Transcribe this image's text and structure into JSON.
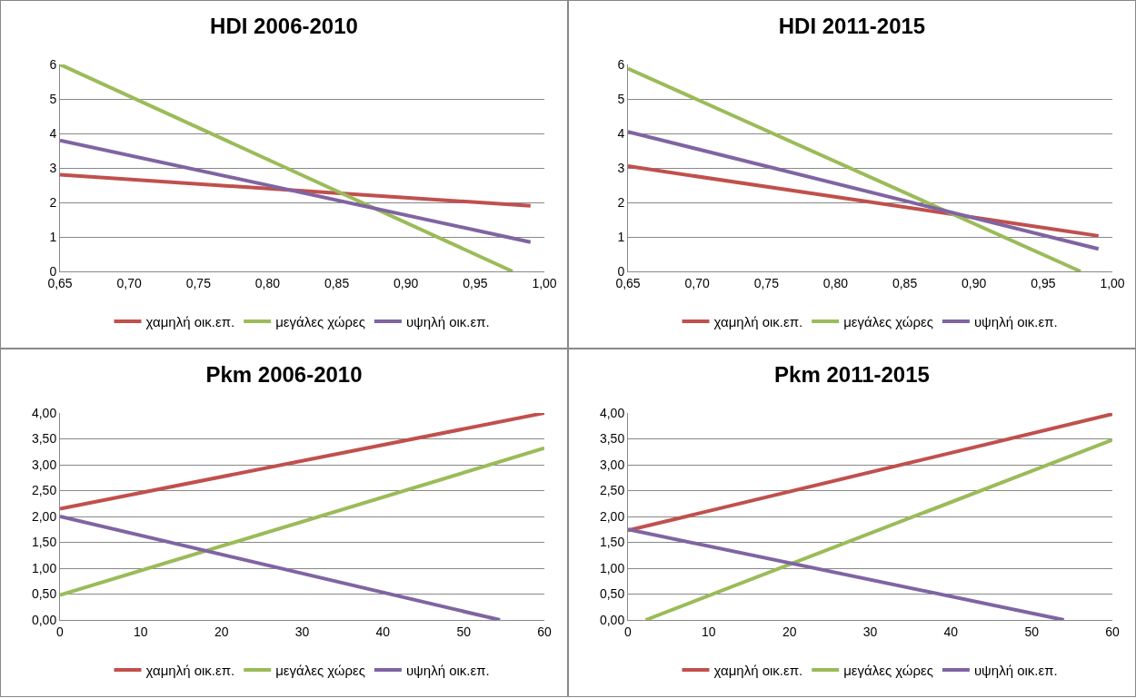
{
  "chart_data": [
    {
      "type": "line",
      "title": "HDI 2006-2010",
      "xlim": [
        0.65,
        1.0
      ],
      "xticks": [
        {
          "value": 0.65,
          "label": "0,65"
        },
        {
          "value": 0.7,
          "label": "0,70"
        },
        {
          "value": 0.75,
          "label": "0,75"
        },
        {
          "value": 0.8,
          "label": "0,80"
        },
        {
          "value": 0.85,
          "label": "0,85"
        },
        {
          "value": 0.9,
          "label": "0,90"
        },
        {
          "value": 0.95,
          "label": "0,95"
        },
        {
          "value": 1.0,
          "label": "1,00"
        }
      ],
      "ylim": [
        0,
        6
      ],
      "yticks": [
        0,
        1,
        2,
        3,
        4,
        5,
        6
      ],
      "grid": "y",
      "legend": "bottom",
      "series": [
        {
          "name": "χαμηλή οικ.επ.",
          "color": "#c0504d",
          "x": [
            0.65,
            0.99
          ],
          "values": [
            2.8,
            1.9
          ]
        },
        {
          "name": "μεγάλες χώρες",
          "color": "#9bbb59",
          "x": [
            0.65,
            0.977
          ],
          "values": [
            6,
            0
          ]
        },
        {
          "name": "υψηλή οικ.επ.",
          "color": "#8064a2",
          "x": [
            0.65,
            0.99
          ],
          "values": [
            3.8,
            0.85
          ]
        }
      ]
    },
    {
      "type": "line",
      "title": "HDI 2011-2015",
      "xlim": [
        0.65,
        1.0
      ],
      "xticks": [
        {
          "value": 0.65,
          "label": "0,65"
        },
        {
          "value": 0.7,
          "label": "0,70"
        },
        {
          "value": 0.75,
          "label": "0,75"
        },
        {
          "value": 0.8,
          "label": "0,80"
        },
        {
          "value": 0.85,
          "label": "0,85"
        },
        {
          "value": 0.9,
          "label": "0,90"
        },
        {
          "value": 0.95,
          "label": "0,95"
        },
        {
          "value": 1.0,
          "label": "1,00"
        }
      ],
      "ylim": [
        0,
        6
      ],
      "yticks": [
        0,
        1,
        2,
        3,
        4,
        5,
        6
      ],
      "grid": "y",
      "legend": "bottom",
      "series": [
        {
          "name": "χαμηλή οικ.επ.",
          "color": "#c0504d",
          "x": [
            0.65,
            0.99
          ],
          "values": [
            3.05,
            1.03
          ]
        },
        {
          "name": "μεγάλες χώρες",
          "color": "#9bbb59",
          "x": [
            0.65,
            0.977
          ],
          "values": [
            5.88,
            0
          ]
        },
        {
          "name": "υψηλή οικ.επ.",
          "color": "#8064a2",
          "x": [
            0.65,
            0.99
          ],
          "values": [
            4.05,
            0.65
          ]
        }
      ]
    },
    {
      "type": "line",
      "title": "Pkm 2006-2010",
      "xlim": [
        0,
        60
      ],
      "xticks": [
        0,
        10,
        20,
        30,
        40,
        50,
        60
      ],
      "ylim": [
        0,
        4
      ],
      "yticks": [
        {
          "value": 0,
          "label": "0,00"
        },
        {
          "value": 0.5,
          "label": "0,50"
        },
        {
          "value": 1,
          "label": "1,00"
        },
        {
          "value": 1.5,
          "label": "1,50"
        },
        {
          "value": 2,
          "label": "2,00"
        },
        {
          "value": 2.5,
          "label": "2,50"
        },
        {
          "value": 3,
          "label": "3,00"
        },
        {
          "value": 3.5,
          "label": "3,50"
        },
        {
          "value": 4,
          "label": "4,00"
        }
      ],
      "grid": "y",
      "legend": "bottom",
      "series": [
        {
          "name": "χαμηλή οικ.επ.",
          "color": "#c0504d",
          "x": [
            0,
            60
          ],
          "values": [
            2.15,
            4.0
          ]
        },
        {
          "name": "μεγάλες χώρες",
          "color": "#9bbb59",
          "x": [
            0,
            60
          ],
          "values": [
            0.48,
            3.32
          ]
        },
        {
          "name": "υψηλή οικ.επ.",
          "color": "#8064a2",
          "x": [
            0,
            54.5
          ],
          "values": [
            2.0,
            0
          ]
        }
      ]
    },
    {
      "type": "line",
      "title": "Pkm 2011-2015",
      "xlim": [
        0,
        60
      ],
      "xticks": [
        0,
        10,
        20,
        30,
        40,
        50,
        60
      ],
      "ylim": [
        0,
        4
      ],
      "yticks": [
        {
          "value": 0,
          "label": "0,00"
        },
        {
          "value": 0.5,
          "label": "0,50"
        },
        {
          "value": 1,
          "label": "1,00"
        },
        {
          "value": 1.5,
          "label": "1,50"
        },
        {
          "value": 2,
          "label": "2,00"
        },
        {
          "value": 2.5,
          "label": "2,50"
        },
        {
          "value": 3,
          "label": "3,00"
        },
        {
          "value": 3.5,
          "label": "3,50"
        },
        {
          "value": 4,
          "label": "4,00"
        }
      ],
      "grid": "y",
      "legend": "bottom",
      "series": [
        {
          "name": "χαμηλή οικ.επ.",
          "color": "#c0504d",
          "x": [
            0,
            60
          ],
          "values": [
            1.73,
            3.98
          ]
        },
        {
          "name": "μεγάλες χώρες",
          "color": "#9bbb59",
          "x": [
            2.2,
            60
          ],
          "values": [
            0,
            3.48
          ]
        },
        {
          "name": "υψηλή οικ.επ.",
          "color": "#8064a2",
          "x": [
            0,
            54
          ],
          "values": [
            1.75,
            0
          ]
        }
      ]
    }
  ]
}
